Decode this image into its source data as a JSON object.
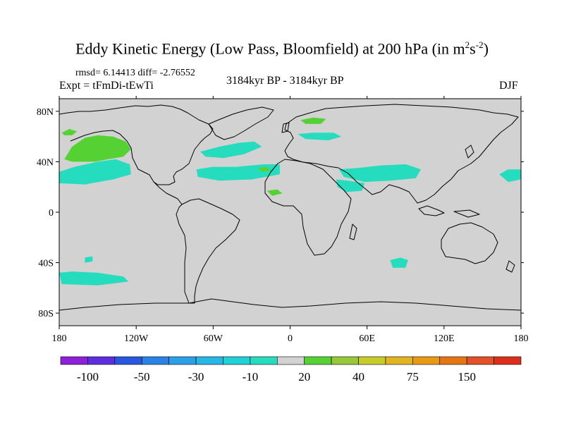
{
  "title": {
    "main": "Eddy Kinetic Energy (Low Pass, Bloomfield) at 200 hPa (in m",
    "sup1": "2",
    "mid": "s",
    "sup2": "-2",
    "end": ")"
  },
  "stats": "rmsd= 6.14413 diff= -2.76552",
  "experiment": "Expt = tFmDi-tEwTi",
  "period": "3184kyr BP - 3184kyr BP",
  "season": "DJF",
  "map": {
    "lon_range": [
      -180,
      180
    ],
    "lat_range": [
      -90,
      90
    ],
    "background_color": "#d2d2d2",
    "x_ticks": [
      {
        "value": -180,
        "label": "180"
      },
      {
        "value": -120,
        "label": "120W"
      },
      {
        "value": -60,
        "label": "60W"
      },
      {
        "value": 0,
        "label": "0"
      },
      {
        "value": 60,
        "label": "60E"
      },
      {
        "value": 120,
        "label": "120E"
      },
      {
        "value": 180,
        "label": "180"
      }
    ],
    "y_ticks": [
      {
        "value": 80,
        "label": "80N"
      },
      {
        "value": 40,
        "label": "40N"
      },
      {
        "value": 0,
        "label": "0"
      },
      {
        "value": -40,
        "label": "40S"
      },
      {
        "value": -80,
        "label": "80S"
      }
    ],
    "regions": [
      {
        "name": "north-pacific-positive",
        "level": "10-20",
        "color": "#55d133",
        "points": [
          [
            -176,
            42
          ],
          [
            -170,
            52
          ],
          [
            -160,
            59
          ],
          [
            -150,
            61
          ],
          [
            -138,
            60
          ],
          [
            -128,
            56
          ],
          [
            -124,
            50
          ],
          [
            -130,
            44
          ],
          [
            -142,
            42
          ],
          [
            -152,
            40
          ],
          [
            -162,
            40
          ],
          [
            -170,
            40
          ]
        ]
      },
      {
        "name": "bering-positive",
        "level": "10-20",
        "color": "#55d133",
        "points": [
          [
            -178,
            63
          ],
          [
            -172,
            66
          ],
          [
            -166,
            64
          ],
          [
            -170,
            61
          ],
          [
            -176,
            61
          ]
        ]
      },
      {
        "name": "north-pacific-negative",
        "level": "-10 to -20",
        "color": "#25dcbf",
        "points": [
          [
            -180,
            32
          ],
          [
            -168,
            36
          ],
          [
            -150,
            40
          ],
          [
            -136,
            42
          ],
          [
            -125,
            38
          ],
          [
            -124,
            30
          ],
          [
            -138,
            26
          ],
          [
            -160,
            22
          ],
          [
            -180,
            23
          ]
        ]
      },
      {
        "name": "atlantic-negative",
        "level": "-10 to -20",
        "color": "#25dcbf",
        "points": [
          [
            -73,
            34
          ],
          [
            -60,
            36
          ],
          [
            -42,
            36
          ],
          [
            -20,
            38
          ],
          [
            -8,
            38
          ],
          [
            -8,
            30
          ],
          [
            -30,
            26
          ],
          [
            -55,
            25
          ],
          [
            -72,
            28
          ]
        ]
      },
      {
        "name": "north-atlantic-negative",
        "level": "-10 to -20",
        "color": "#25dcbf",
        "points": [
          [
            -70,
            48
          ],
          [
            -55,
            52
          ],
          [
            -40,
            55
          ],
          [
            -28,
            56
          ],
          [
            -22,
            52
          ],
          [
            -36,
            46
          ],
          [
            -52,
            43
          ],
          [
            -66,
            44
          ]
        ]
      },
      {
        "name": "europe-negative",
        "level": "-10 to -20",
        "color": "#25dcbf",
        "points": [
          [
            6,
            62
          ],
          [
            18,
            63
          ],
          [
            34,
            63
          ],
          [
            40,
            60
          ],
          [
            30,
            57
          ],
          [
            12,
            58
          ]
        ]
      },
      {
        "name": "asia-negative",
        "level": "-10 to -20",
        "color": "#25dcbf",
        "points": [
          [
            38,
            34
          ],
          [
            52,
            35
          ],
          [
            70,
            37
          ],
          [
            90,
            38
          ],
          [
            102,
            34
          ],
          [
            98,
            27
          ],
          [
            78,
            25
          ],
          [
            58,
            24
          ],
          [
            42,
            28
          ]
        ]
      },
      {
        "name": "arabia-negative",
        "level": "-10 to -20",
        "color": "#25dcbf",
        "points": [
          [
            36,
            26
          ],
          [
            45,
            25
          ],
          [
            58,
            23
          ],
          [
            56,
            17
          ],
          [
            44,
            16
          ],
          [
            37,
            20
          ]
        ]
      },
      {
        "name": "pacific-east-negative",
        "level": "-10 to -20",
        "color": "#25dcbf",
        "points": [
          [
            163,
            30
          ],
          [
            170,
            34
          ],
          [
            180,
            34
          ],
          [
            180,
            26
          ],
          [
            170,
            24
          ]
        ]
      },
      {
        "name": "south-pacific-negative",
        "level": "-10 to -20",
        "color": "#25dcbf",
        "points": [
          [
            -180,
            -48
          ],
          [
            -170,
            -47
          ],
          [
            -150,
            -48
          ],
          [
            -130,
            -51
          ],
          [
            -126,
            -55
          ],
          [
            -150,
            -58
          ],
          [
            -178,
            -57
          ]
        ]
      },
      {
        "name": "south-atlantic-negative",
        "level": "-10 to -20",
        "color": "#25dcbf",
        "points": [
          [
            -160,
            -36
          ],
          [
            -154,
            -35
          ],
          [
            -154,
            -39
          ],
          [
            -160,
            -40
          ]
        ]
      },
      {
        "name": "indian-ocean-negative",
        "level": "-10 to -20",
        "color": "#25dcbf",
        "points": [
          [
            78,
            -38
          ],
          [
            86,
            -36
          ],
          [
            92,
            -38
          ],
          [
            90,
            -44
          ],
          [
            80,
            -44
          ]
        ]
      },
      {
        "name": "arctic-positive",
        "level": "10-20",
        "color": "#55d133",
        "points": [
          [
            8,
            73
          ],
          [
            18,
            75
          ],
          [
            28,
            74
          ],
          [
            24,
            70
          ],
          [
            12,
            70
          ]
        ]
      },
      {
        "name": "mid-atlantic-positive",
        "level": "10-20",
        "color": "#55d133",
        "points": [
          [
            -25,
            35
          ],
          [
            -18,
            36
          ],
          [
            -15,
            33
          ],
          [
            -22,
            32
          ]
        ]
      },
      {
        "name": "north-africa-positive",
        "level": "10-20",
        "color": "#55d133",
        "points": [
          [
            -18,
            17
          ],
          [
            -10,
            18
          ],
          [
            -6,
            15
          ],
          [
            -14,
            13
          ]
        ]
      }
    ]
  },
  "colorbar": {
    "colors": [
      "#8d20d8",
      "#5e2de0",
      "#2a57e0",
      "#2b82e6",
      "#2b9fe8",
      "#27b7e4",
      "#22d1d8",
      "#25dcbf",
      "#d2d2d2",
      "#55d133",
      "#98c83a",
      "#c8cc2a",
      "#e1b421",
      "#e89a17",
      "#e57614",
      "#e0512a",
      "#dc2f1c"
    ],
    "labels": [
      "-100",
      "-50",
      "-30",
      "-10",
      "20",
      "40",
      "75",
      "150"
    ]
  }
}
